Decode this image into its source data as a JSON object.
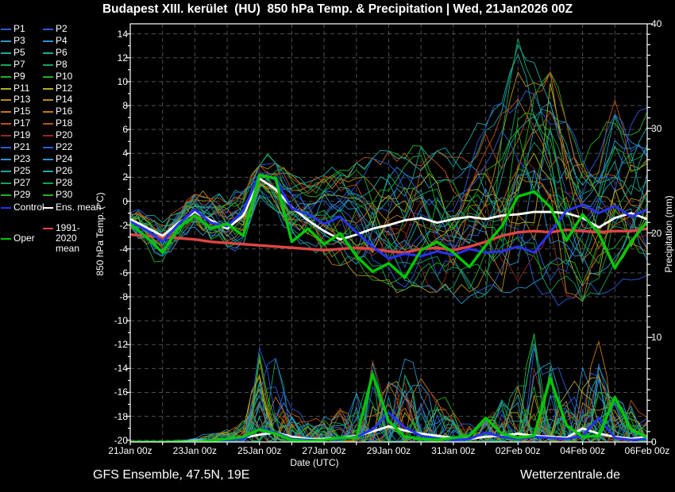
{
  "title": "Budapest XIII. kerület  (HU)  850 hPa Temp. & Precipitation | Wed, 21Jan2026 00Z",
  "footer": {
    "left": "GFS Ensemble, 47.5N, 19E",
    "right": "Wetterzentrale.de"
  },
  "legend": {
    "members": [
      {
        "label": "P1",
        "color": "#2b5cd6"
      },
      {
        "label": "P2",
        "color": "#2b5cd6"
      },
      {
        "label": "P3",
        "color": "#2b94cc"
      },
      {
        "label": "P4",
        "color": "#2b94cc"
      },
      {
        "label": "P5",
        "color": "#1aa8a0"
      },
      {
        "label": "P6",
        "color": "#1aa8a0"
      },
      {
        "label": "P7",
        "color": "#14a35c"
      },
      {
        "label": "P8",
        "color": "#14a35c"
      },
      {
        "label": "P9",
        "color": "#22b022"
      },
      {
        "label": "P10",
        "color": "#22b022"
      },
      {
        "label": "P11",
        "color": "#b2b220"
      },
      {
        "label": "P12",
        "color": "#b2b220"
      },
      {
        "label": "P13",
        "color": "#b4901a"
      },
      {
        "label": "P14",
        "color": "#b4901a"
      },
      {
        "label": "P15",
        "color": "#c47814"
      },
      {
        "label": "P16",
        "color": "#c47814"
      },
      {
        "label": "P17",
        "color": "#bf5218"
      },
      {
        "label": "P18",
        "color": "#bf5218"
      },
      {
        "label": "P19",
        "color": "#962a20"
      },
      {
        "label": "P20",
        "color": "#962a20"
      },
      {
        "label": "P21",
        "color": "#2b5cd6"
      },
      {
        "label": "P22",
        "color": "#2b5cd6"
      },
      {
        "label": "P23",
        "color": "#2b94cc"
      },
      {
        "label": "P24",
        "color": "#2b94cc"
      },
      {
        "label": "P25",
        "color": "#1aa8a0"
      },
      {
        "label": "P26",
        "color": "#1aa8a0"
      },
      {
        "label": "P27",
        "color": "#14a35c"
      },
      {
        "label": "P28",
        "color": "#14a35c"
      },
      {
        "label": "P29",
        "color": "#22b022"
      },
      {
        "label": "P30",
        "color": "#22b022"
      }
    ],
    "specials": {
      "control": {
        "label": "Control",
        "color": "#2633ee"
      },
      "ens_mean": {
        "label": "Ens. mean",
        "color": "#ffffff"
      },
      "clim_mean": {
        "label": "1991-2020 mean",
        "color": "#e04545"
      },
      "oper": {
        "label": "Oper",
        "color": "#00c800"
      }
    }
  },
  "chart_data": {
    "type": "line",
    "title": "Budapest XIII. kerület  (HU)  850 hPa Temp. & Precipitation | Wed, 21Jan2026 00Z",
    "x_axis": {
      "label": "Date (UTC)",
      "tick_labels": [
        "21Jan 00z",
        "23Jan 00z",
        "25Jan 00z",
        "27Jan 00z",
        "29Jan 00z",
        "31Jan 00z",
        "02Feb 00z",
        "04Feb 00z",
        "06Feb 00z"
      ],
      "days_between_labels": 2,
      "total_days": 16,
      "gridline_every_days": 1
    },
    "y_axis_left": {
      "label": "850 hPa Temp. (°C)",
      "min": -20,
      "max": 14,
      "tick_step": 2
    },
    "y_axis_right": {
      "label": "Precipitation (mm)",
      "min": 0,
      "max": 40,
      "labeled_tick_step": 10,
      "minor_tick_step": 1
    },
    "x_days": [
      0,
      0.5,
      1,
      1.5,
      2,
      2.5,
      3,
      3.5,
      4,
      4.5,
      5,
      5.5,
      6,
      6.5,
      7,
      7.5,
      8,
      8.5,
      9,
      9.5,
      10,
      10.5,
      11,
      11.5,
      12,
      12.5,
      13,
      13.5,
      14,
      14.5,
      15,
      15.5,
      16
    ],
    "temperature": {
      "series": [
        {
          "name": "1991-2020 mean",
          "color": "#e04545",
          "width": 3.4,
          "values": [
            -2.8,
            -2.9,
            -3.0,
            -3.1,
            -3.2,
            -3.4,
            -3.5,
            -3.6,
            -3.7,
            -3.8,
            -3.9,
            -4.0,
            -4.1,
            -4.0,
            -3.9,
            -4.0,
            -4.2,
            -4.3,
            -4.0,
            -3.9,
            -4.1,
            -3.8,
            -3.4,
            -2.9,
            -2.6,
            -2.5,
            -2.6,
            -2.4,
            -2.5,
            -2.6,
            -2.5,
            -2.5,
            -2.3
          ]
        },
        {
          "name": "Ens. mean",
          "color": "#ffffff",
          "width": 2.8,
          "values": [
            -1.5,
            -2.2,
            -2.9,
            -1.8,
            -0.9,
            -1.6,
            -2.3,
            -1.2,
            1.9,
            1.0,
            -0.5,
            -1.6,
            -2.5,
            -3.2,
            -2.8,
            -2.3,
            -2.0,
            -1.6,
            -1.4,
            -1.8,
            -1.5,
            -1.3,
            -1.5,
            -1.2,
            -1.1,
            -0.9,
            -0.9,
            -1.0,
            -1.4,
            -2.2,
            -1.4,
            -1.0,
            -1.5
          ]
        },
        {
          "name": "Control",
          "color": "#2633ee",
          "width": 3.0,
          "values": [
            -1.7,
            -2.4,
            -3.4,
            -1.9,
            -0.7,
            -1.8,
            -2.1,
            -0.8,
            2.3,
            1.8,
            -0.6,
            -1.1,
            -1.9,
            -1.3,
            -2.6,
            -3.8,
            -4.8,
            -4.4,
            -4.6,
            -4.2,
            -4.5,
            -4.0,
            -4.3,
            -4.2,
            -3.8,
            -4.3,
            -2.6,
            -0.8,
            -0.3,
            -1.0,
            -0.4,
            -1.3,
            -0.7
          ]
        },
        {
          "name": "Oper",
          "color": "#00c800",
          "width": 3.4,
          "values": [
            -1.9,
            -3.0,
            -4.3,
            -2.2,
            -1.2,
            -2.3,
            -1.9,
            -2.9,
            2.2,
            1.9,
            -3.4,
            -2.3,
            -3.6,
            -2.7,
            -4.6,
            -5.9,
            -5.2,
            -6.4,
            -4.1,
            -3.4,
            -4.3,
            -5.5,
            -3.7,
            -2.1,
            0.4,
            0.8,
            -0.5,
            -3.3,
            -1.1,
            -2.7,
            -5.6,
            -3.4,
            -1.7
          ]
        }
      ],
      "member_envelope_min": [
        -2.4,
        -3.6,
        -5.0,
        -3.2,
        -2.2,
        -3.2,
        -3.8,
        -3.6,
        0.3,
        -0.8,
        -3.6,
        -3.8,
        -4.8,
        -5.4,
        -6.2,
        -6.6,
        -7.0,
        -7.4,
        -7.2,
        -7.6,
        -7.8,
        -8.0,
        -7.8,
        -7.6,
        -7.2,
        -6.8,
        -7.6,
        -8.2,
        -8.4,
        -7.8,
        -7.2,
        -6.6,
        -6.2
      ],
      "member_envelope_max": [
        -0.9,
        -1.2,
        -1.8,
        -0.4,
        0.6,
        0.2,
        -0.2,
        0.8,
        3.0,
        3.2,
        2.2,
        1.6,
        2.2,
        2.6,
        3.2,
        3.6,
        4.2,
        4.0,
        4.6,
        4.2,
        3.8,
        5.2,
        6.6,
        8.2,
        13.6,
        11.6,
        10.8,
        6.6,
        5.2,
        6.6,
        9.2,
        7.6,
        7.8
      ]
    },
    "precipitation": {
      "series": [
        {
          "name": "Ens. mean",
          "color": "#ffffff",
          "width": 2.8,
          "values": [
            0,
            0,
            0,
            0,
            0.1,
            0.1,
            0.2,
            0.4,
            0.7,
            0.9,
            0.5,
            0.3,
            0.3,
            0.4,
            0.6,
            1.0,
            1.5,
            1.1,
            0.8,
            0.6,
            0.4,
            0.3,
            0.5,
            0.6,
            0.8,
            0.6,
            0.5,
            0.4,
            1.3,
            0.8,
            0.5,
            0.3,
            0.5
          ]
        },
        {
          "name": "Control",
          "color": "#2633ee",
          "width": 3.0,
          "values": [
            0,
            0,
            0,
            0,
            0,
            0.1,
            0.2,
            0.3,
            1.3,
            0.9,
            0.3,
            0.2,
            0.2,
            0.3,
            0.5,
            1.2,
            2.8,
            1.4,
            0.6,
            0.3,
            0.2,
            0.3,
            0.9,
            0.5,
            0.3,
            0.5,
            0.4,
            0.3,
            0.6,
            2.3,
            0.4,
            0.2,
            0.3
          ]
        },
        {
          "name": "Oper",
          "color": "#00c800",
          "width": 3.4,
          "values": [
            0,
            0,
            0,
            0,
            0,
            0.1,
            0.3,
            0.5,
            1.2,
            0.8,
            0.2,
            0.1,
            0.2,
            0.4,
            0.4,
            6.5,
            2.0,
            0.5,
            0.3,
            0.2,
            0.4,
            0.6,
            2.3,
            0.8,
            0.4,
            0.6,
            6.1,
            1.6,
            0.5,
            0.6,
            4.3,
            1.2,
            0.4
          ]
        }
      ],
      "member_envelope_max": [
        0,
        0,
        0,
        0.2,
        0.4,
        0.8,
        1.2,
        2.2,
        9.0,
        8.6,
        3.4,
        2.0,
        2.6,
        3.6,
        5.0,
        8.2,
        7.0,
        9.0,
        6.4,
        4.0,
        3.0,
        2.6,
        3.2,
        4.2,
        5.4,
        10.4,
        8.8,
        5.0,
        8.0,
        9.6,
        5.2,
        4.0,
        3.0
      ]
    }
  }
}
